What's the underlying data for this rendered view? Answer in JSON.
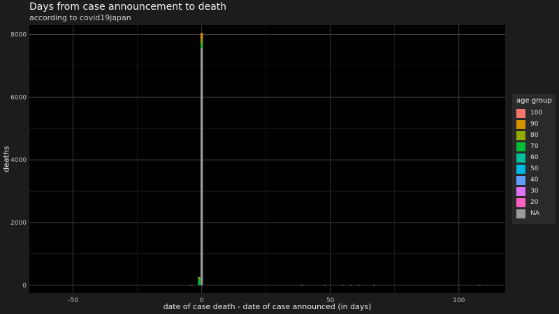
{
  "chart_data": {
    "type": "bar",
    "title": "Days from case announcement to death",
    "subtitle": "according to covid19japan",
    "xlabel": "date of case death - date of case announced (in days)",
    "ylabel": "deaths",
    "xlim": [
      -67,
      118
    ],
    "ylim": [
      -250,
      8300
    ],
    "xticks": [
      -50,
      0,
      50,
      100
    ],
    "xtick_labels": [
      "-50",
      "0",
      "50",
      "100"
    ],
    "yticks": [
      0,
      2000,
      4000,
      6000,
      8000
    ],
    "ytick_labels": [
      "0",
      "2000",
      "4000",
      "6000",
      "8000"
    ],
    "grid": true,
    "legend_position": "right",
    "legend_title": "age group",
    "stacked": true,
    "series": [
      {
        "name": "100",
        "color": "#f8766d"
      },
      {
        "name": "90",
        "color": "#d39200"
      },
      {
        "name": "80",
        "color": "#93aa00"
      },
      {
        "name": "70",
        "color": "#00ba38"
      },
      {
        "name": "60",
        "color": "#00c19f"
      },
      {
        "name": "50",
        "color": "#00b9e3"
      },
      {
        "name": "40",
        "color": "#619cff"
      },
      {
        "name": "30",
        "color": "#db72fb"
      },
      {
        "name": "20",
        "color": "#ff61c3"
      },
      {
        "name": "NA",
        "color": "#9a9a9a"
      }
    ],
    "bars": [
      {
        "x": 0,
        "segments": [
          {
            "group": "NA",
            "value": 7570
          },
          {
            "group": "70",
            "value": 130
          },
          {
            "group": "80",
            "value": 150
          },
          {
            "group": "90",
            "value": 200
          }
        ]
      },
      {
        "x": -1,
        "segments": [
          {
            "group": "70",
            "value": 200
          },
          {
            "group": "80",
            "value": 60
          }
        ]
      },
      {
        "x": -4,
        "segments": [
          {
            "group": "NA",
            "value": 5
          }
        ]
      },
      {
        "x": 39,
        "segments": [
          {
            "group": "NA",
            "value": 20
          }
        ]
      },
      {
        "x": 48,
        "segments": [
          {
            "group": "NA",
            "value": 5
          }
        ]
      },
      {
        "x": 55,
        "segments": [
          {
            "group": "NA",
            "value": 5
          }
        ]
      },
      {
        "x": 58,
        "segments": [
          {
            "group": "NA",
            "value": 5
          }
        ]
      },
      {
        "x": 61,
        "segments": [
          {
            "group": "NA",
            "value": 5
          }
        ]
      },
      {
        "x": 67,
        "segments": [
          {
            "group": "NA",
            "value": 5
          }
        ]
      },
      {
        "x": 108,
        "segments": [
          {
            "group": "NA",
            "value": 5
          }
        ]
      }
    ]
  }
}
